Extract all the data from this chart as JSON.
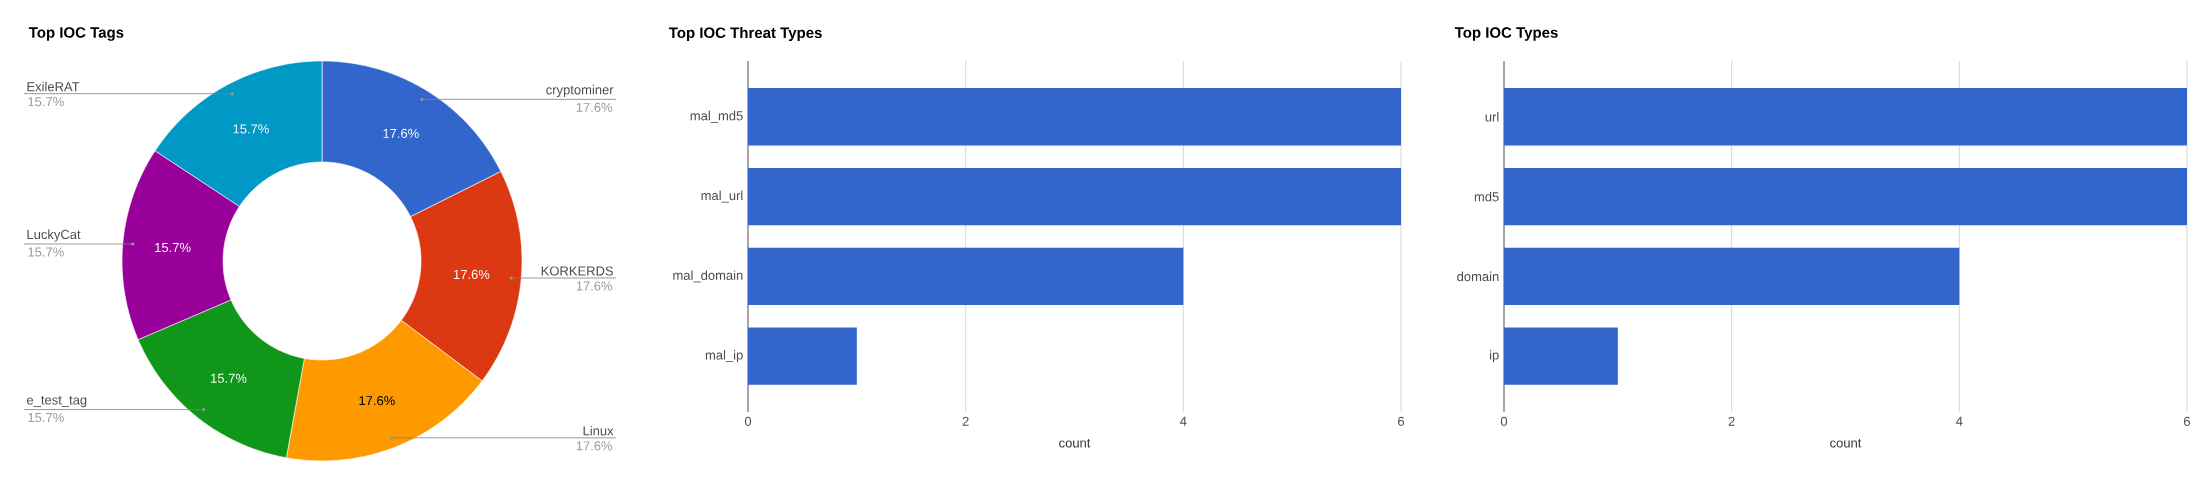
{
  "chart_data": [
    {
      "type": "donut",
      "title": "Top IOC Tags",
      "categories": [
        "cryptominer",
        "KORKERDS",
        "Linux",
        "e_test_tag",
        "LuckyCat",
        "ExileRAT"
      ],
      "values": [
        17.6,
        17.6,
        17.6,
        15.7,
        15.7,
        15.7
      ],
      "value_labels": [
        "17.6%",
        "17.6%",
        "17.6%",
        "15.7%",
        "15.7%",
        "15.7%"
      ],
      "colors": [
        "#3366cc",
        "#dc3912",
        "#ff9900",
        "#109618",
        "#990099",
        "#0099c6"
      ]
    },
    {
      "type": "bar",
      "orientation": "horizontal",
      "title": "Top IOC Threat Types",
      "xlabel": "count",
      "categories": [
        "mal_md5",
        "mal_url",
        "mal_domain",
        "mal_ip"
      ],
      "values": [
        6,
        6,
        4,
        1
      ],
      "color": "#3366cc",
      "xlim": [
        0,
        6
      ],
      "xticks": [
        0,
        2,
        4,
        6
      ],
      "grid": "x"
    },
    {
      "type": "bar",
      "orientation": "horizontal",
      "title": "Top IOC Types",
      "xlabel": "count",
      "categories": [
        "url",
        "md5",
        "domain",
        "ip"
      ],
      "values": [
        6,
        6,
        4,
        1
      ],
      "color": "#3366cc",
      "xlim": [
        0,
        6
      ],
      "xticks": [
        0,
        2,
        4,
        6
      ],
      "grid": "x"
    }
  ]
}
